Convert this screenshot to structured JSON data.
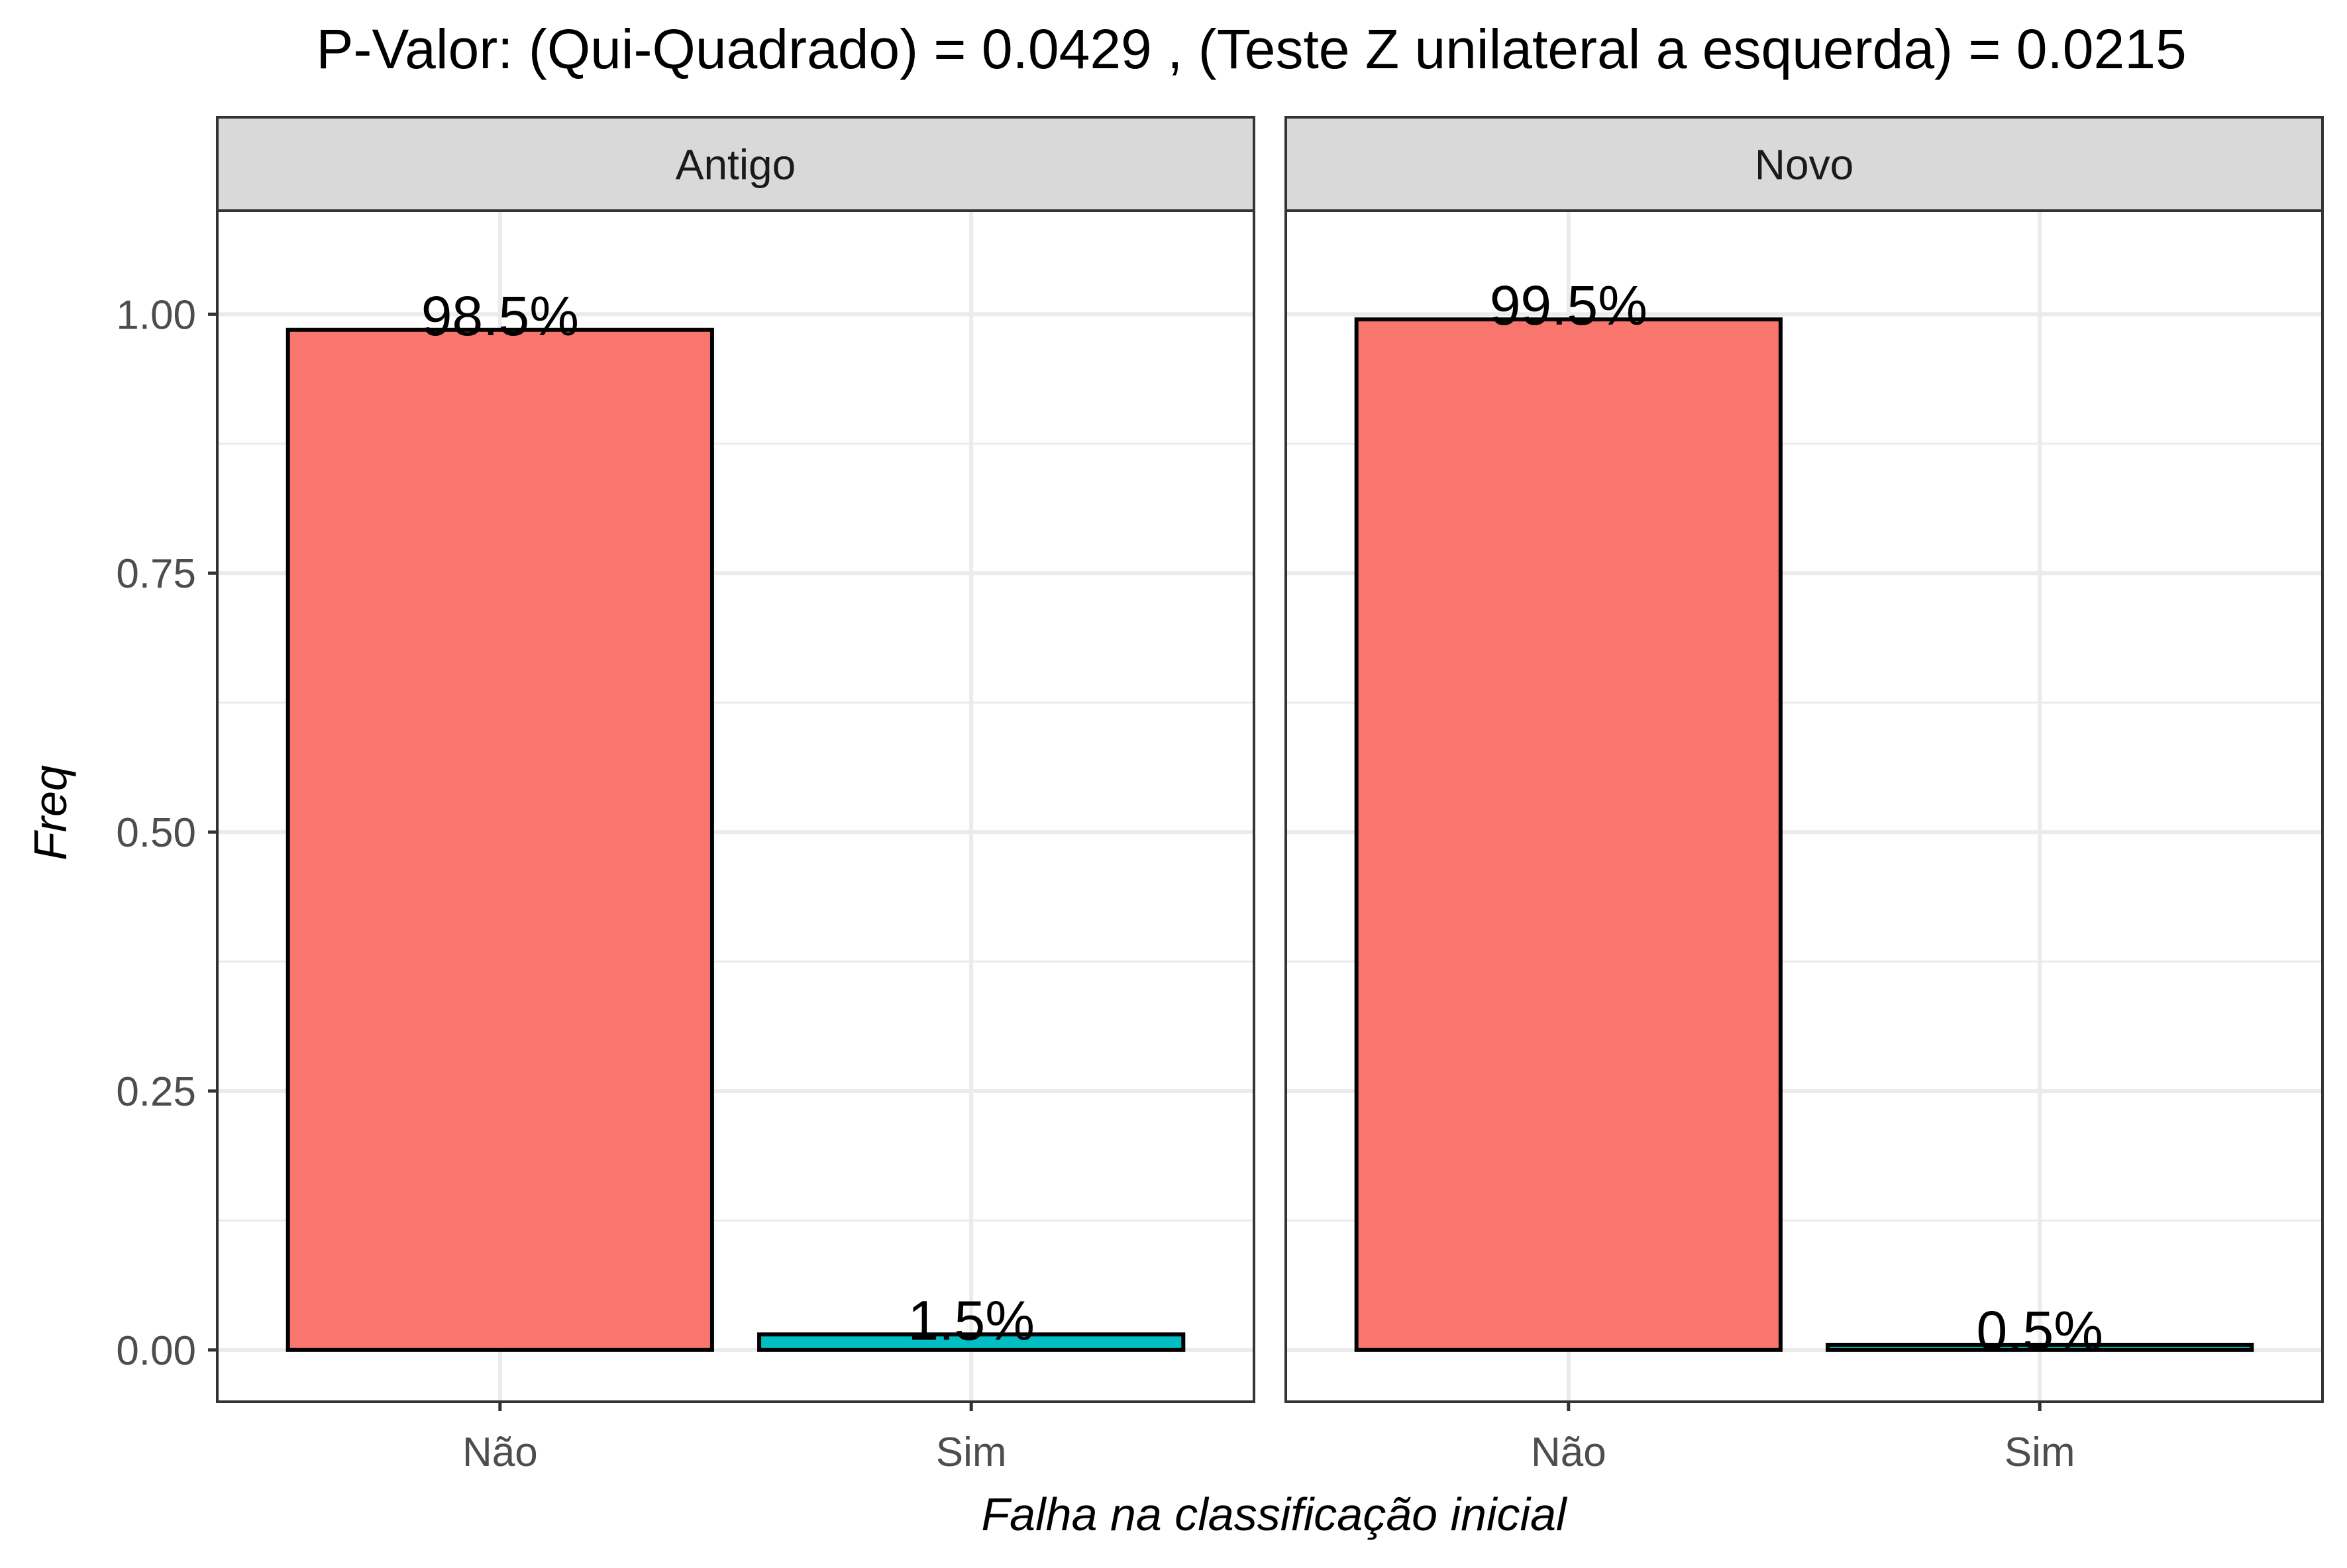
{
  "chart_data": {
    "type": "bar",
    "title": "P-Valor: (Qui-Quadrado) = 0.0429 , (Teste Z unilateral a esquerda) = 0.0215",
    "xlabel": "Falha na classificação inicial",
    "ylabel": "Freq",
    "ylim": [
      -0.05,
      1.1
    ],
    "yticks": [
      0.0,
      0.25,
      0.5,
      0.75,
      1.0
    ],
    "ytick_labels": [
      "0.00",
      "0.25",
      "0.50",
      "0.75",
      "1.00"
    ],
    "categories": [
      "Não",
      "Sim"
    ],
    "grid": true,
    "facets": [
      {
        "label": "Antigo",
        "values": [
          0.985,
          0.015
        ],
        "labels": [
          "98.5%",
          "1.5%"
        ]
      },
      {
        "label": "Novo",
        "values": [
          0.995,
          0.005
        ],
        "labels": [
          "99.5%",
          "0.5%"
        ]
      }
    ],
    "colors": {
      "Não": "#F8766D",
      "Sim": "#00BFC4",
      "bar_outline": "#000000",
      "strip_bg": "#D9D9D9",
      "grid": "#EBEBEB"
    }
  }
}
